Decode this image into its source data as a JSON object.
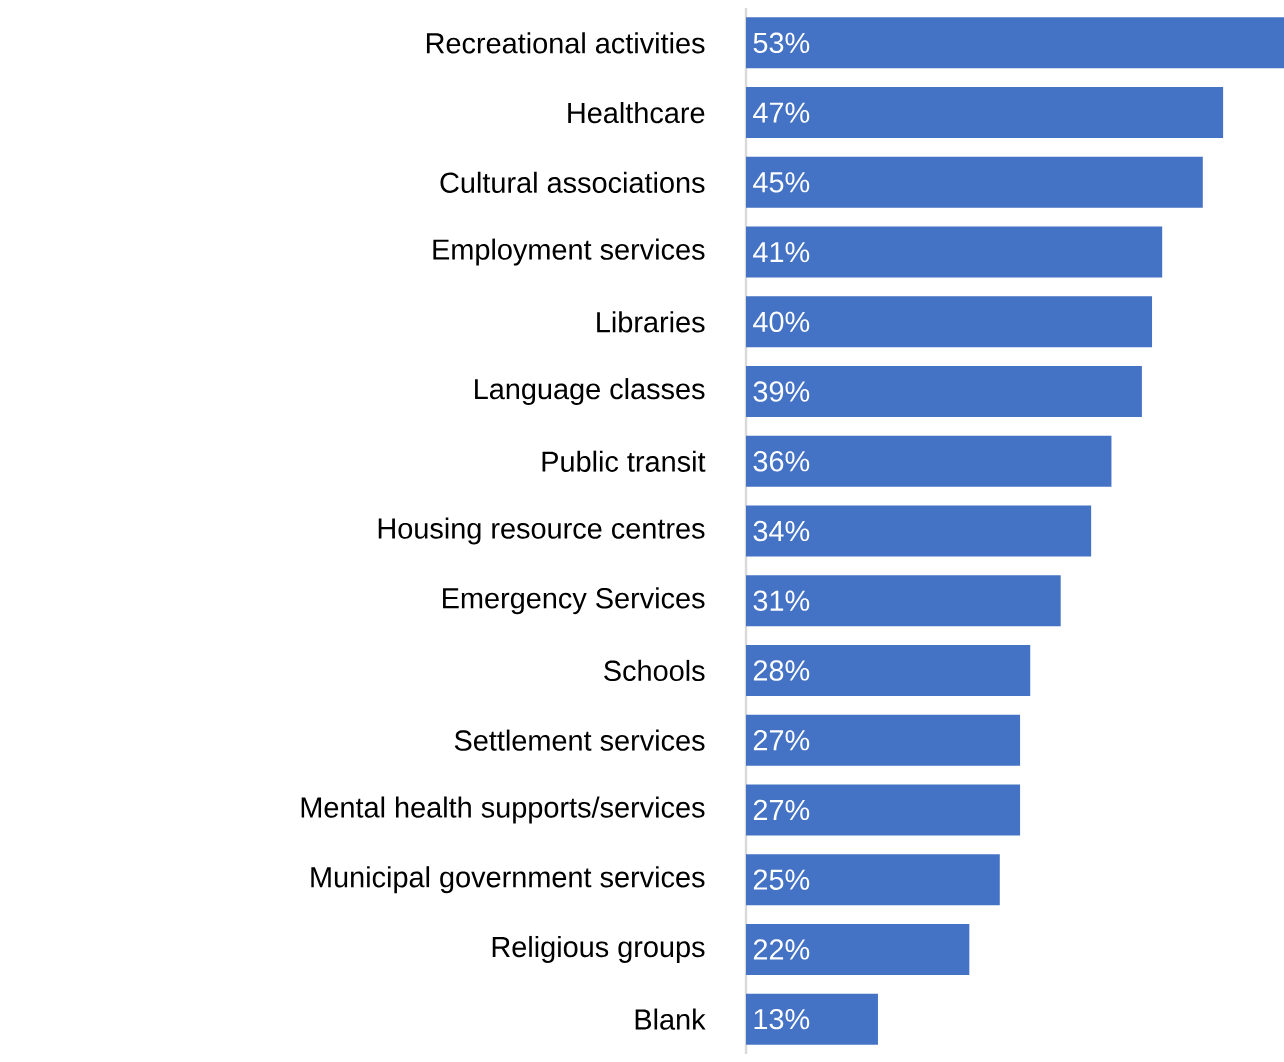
{
  "chart_data": {
    "type": "bar",
    "orientation": "horizontal",
    "categories": [
      "Recreational activities",
      "Healthcare",
      "Cultural associations",
      "Employment services",
      "Libraries",
      "Language classes",
      "Public transit",
      "Housing resource centres",
      "Emergency Services",
      "Schools",
      "Settlement services",
      "Mental health supports/services",
      "Municipal government services",
      "Religious groups",
      "Blank"
    ],
    "values": [
      53,
      47,
      45,
      41,
      40,
      39,
      36,
      34,
      31,
      28,
      27,
      27,
      25,
      22,
      13
    ],
    "value_labels": [
      "53%",
      "47%",
      "45%",
      "41%",
      "40%",
      "39%",
      "36%",
      "34%",
      "31%",
      "28%",
      "27%",
      "27%",
      "25%",
      "22%",
      "13%"
    ],
    "color": "#4472c4",
    "xlim": [
      0,
      53
    ]
  }
}
